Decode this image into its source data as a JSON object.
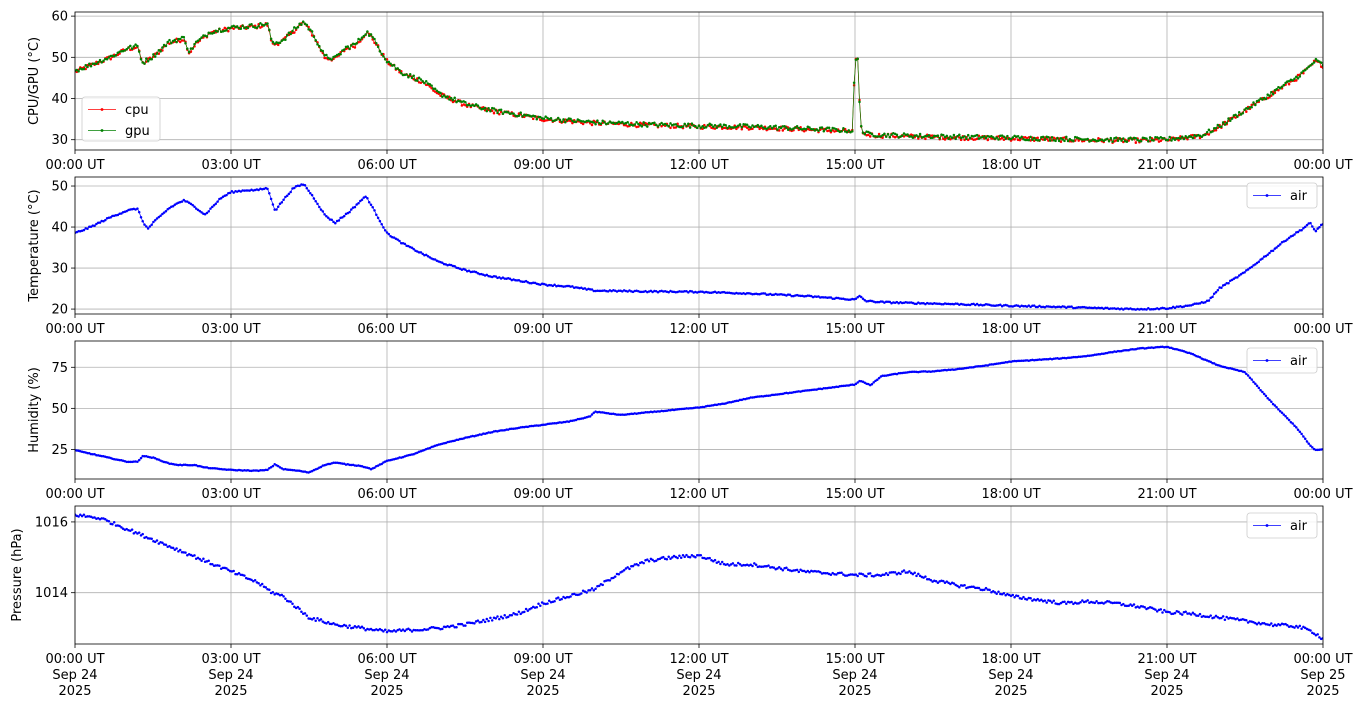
{
  "chart_data": [
    {
      "type": "line",
      "ylabel": "CPU/GPU (°C)",
      "ylim": [
        27.5,
        61
      ],
      "yticks": [
        30,
        40,
        50,
        60
      ],
      "grid": true,
      "legend": "lower-left",
      "x_tick_labels": [
        "00:00 UT",
        "03:00 UT",
        "06:00 UT",
        "09:00 UT",
        "12:00 UT",
        "15:00 UT",
        "18:00 UT",
        "21:00 UT",
        "00:00 UT"
      ],
      "series": [
        {
          "name": "cpu",
          "color": "#ff0000",
          "x": [
            0,
            0.1,
            0.3,
            0.7,
            1.0,
            1.2,
            1.3,
            1.5,
            1.8,
            2.1,
            2.2,
            2.3,
            2.6,
            3.0,
            3.5,
            3.7,
            3.8,
            4.0,
            4.3,
            4.4,
            4.6,
            4.8,
            5.0,
            5.2,
            5.4,
            5.6,
            5.7,
            6.0,
            6.3,
            6.7,
            7.0,
            7.5,
            8.0,
            8.5,
            9.0,
            9.5,
            10.0,
            10.5,
            11.0,
            12.0,
            13.0,
            14.0,
            14.95,
            15.0,
            15.05,
            15.1,
            15.15,
            15.25,
            15.5,
            16.0,
            17.0,
            18.0,
            19.0,
            20.0,
            20.5,
            21.0,
            21.4,
            21.7,
            22.0,
            22.5,
            23.0,
            23.5,
            23.7,
            23.85,
            24.0
          ],
          "y": [
            46.5,
            47.0,
            48.0,
            50.0,
            52.0,
            52.5,
            48.5,
            50.0,
            53.5,
            54.5,
            51.0,
            53.0,
            56.0,
            57.0,
            57.5,
            58.0,
            53.0,
            54.0,
            57.5,
            58.5,
            55.0,
            50.0,
            49.5,
            52.0,
            53.0,
            56.0,
            55.0,
            49.0,
            46.0,
            44.0,
            41.0,
            38.5,
            37.0,
            36.0,
            35.0,
            34.5,
            34.0,
            33.8,
            33.5,
            33.2,
            33.0,
            32.5,
            32.0,
            49.0,
            49.5,
            35.0,
            31.5,
            31.2,
            31.0,
            30.8,
            30.5,
            30.3,
            30.0,
            29.8,
            29.8,
            29.9,
            30.5,
            31.0,
            33.0,
            37.0,
            41.0,
            45.0,
            47.0,
            49.0,
            48.0
          ]
        },
        {
          "name": "gpu",
          "color": "#008000",
          "x": [
            0,
            0.1,
            0.3,
            0.7,
            1.0,
            1.2,
            1.3,
            1.5,
            1.8,
            2.1,
            2.2,
            2.3,
            2.6,
            3.0,
            3.5,
            3.7,
            3.8,
            4.0,
            4.3,
            4.4,
            4.6,
            4.8,
            5.0,
            5.2,
            5.4,
            5.6,
            5.7,
            6.0,
            6.3,
            6.7,
            7.0,
            7.5,
            8.0,
            8.5,
            9.0,
            9.5,
            10.0,
            10.5,
            11.0,
            12.0,
            13.0,
            14.0,
            14.95,
            15.0,
            15.05,
            15.1,
            15.15,
            15.25,
            15.5,
            16.0,
            17.0,
            18.0,
            19.0,
            20.0,
            20.5,
            21.0,
            21.4,
            21.7,
            22.0,
            22.5,
            23.0,
            23.5,
            23.7,
            23.85,
            24.0
          ],
          "y": [
            46.8,
            47.2,
            48.2,
            50.2,
            52.2,
            52.7,
            48.7,
            50.2,
            53.7,
            54.7,
            51.2,
            53.2,
            56.2,
            57.2,
            57.7,
            58.2,
            53.2,
            54.2,
            57.7,
            58.7,
            55.2,
            50.2,
            49.7,
            52.2,
            53.2,
            56.2,
            55.2,
            49.2,
            46.2,
            44.2,
            41.2,
            38.7,
            37.2,
            36.2,
            35.2,
            34.7,
            34.2,
            34.0,
            33.7,
            33.4,
            33.2,
            32.7,
            32.2,
            49.2,
            49.7,
            35.2,
            31.7,
            31.4,
            31.2,
            31.0,
            30.7,
            30.5,
            30.2,
            30.0,
            30.0,
            30.1,
            30.7,
            31.2,
            33.2,
            37.2,
            41.2,
            45.2,
            47.2,
            49.2,
            48.2
          ]
        }
      ]
    },
    {
      "type": "line",
      "ylabel": "Temperature (°C)",
      "ylim": [
        18.8,
        52.2
      ],
      "yticks": [
        20,
        30,
        40,
        50
      ],
      "grid": true,
      "legend": "upper-right",
      "x_tick_labels": [
        "00:00 UT",
        "03:00 UT",
        "06:00 UT",
        "09:00 UT",
        "12:00 UT",
        "15:00 UT",
        "18:00 UT",
        "21:00 UT",
        "00:00 UT"
      ],
      "series": [
        {
          "name": "air",
          "color": "#0000ff",
          "x": [
            0,
            0.3,
            0.7,
            1.0,
            1.2,
            1.3,
            1.4,
            1.5,
            1.8,
            2.0,
            2.1,
            2.3,
            2.5,
            2.8,
            3.0,
            3.3,
            3.5,
            3.7,
            3.85,
            4.0,
            4.2,
            4.4,
            4.6,
            4.8,
            5.0,
            5.1,
            5.3,
            5.5,
            5.6,
            5.8,
            6.0,
            6.3,
            6.6,
            7.0,
            7.5,
            8.0,
            8.5,
            9.0,
            9.5,
            10.0,
            11.0,
            12.0,
            13.0,
            14.0,
            15.0,
            15.1,
            15.2,
            15.5,
            16.0,
            17.0,
            18.0,
            19.0,
            20.0,
            20.5,
            21.0,
            21.5,
            21.8,
            22.0,
            22.5,
            23.0,
            23.3,
            23.6,
            23.75,
            23.85,
            24.0
          ],
          "y": [
            38.5,
            40.0,
            42.5,
            44.0,
            44.5,
            41.5,
            39.5,
            41.0,
            44.5,
            46.0,
            46.5,
            45.0,
            43.0,
            47.0,
            48.5,
            49.0,
            49.0,
            49.5,
            44.0,
            46.5,
            49.5,
            50.5,
            47.0,
            43.0,
            41.0,
            42.0,
            44.0,
            46.5,
            47.5,
            43.0,
            38.5,
            36.0,
            34.0,
            31.5,
            29.5,
            28.0,
            27.0,
            26.0,
            25.5,
            24.5,
            24.3,
            24.2,
            23.8,
            23.2,
            22.3,
            23.2,
            22.0,
            21.7,
            21.5,
            21.2,
            20.8,
            20.5,
            20.1,
            20.0,
            20.2,
            21.0,
            22.0,
            25.0,
            29.0,
            34.0,
            37.0,
            39.5,
            41.0,
            39.0,
            40.8
          ]
        }
      ]
    },
    {
      "type": "line",
      "ylabel": "Humidity (%)",
      "ylim": [
        7,
        91
      ],
      "yticks": [
        25,
        50,
        75
      ],
      "grid": true,
      "legend": "upper-right",
      "x_tick_labels": [
        "00:00 UT",
        "03:00 UT",
        "06:00 UT",
        "09:00 UT",
        "12:00 UT",
        "15:00 UT",
        "18:00 UT",
        "21:00 UT",
        "00:00 UT"
      ],
      "series": [
        {
          "name": "air",
          "color": "#0000ff",
          "x": [
            0,
            0.5,
            1.0,
            1.2,
            1.3,
            1.5,
            1.8,
            2.0,
            2.3,
            2.5,
            2.8,
            3.0,
            3.5,
            3.7,
            3.85,
            4.0,
            4.3,
            4.5,
            4.8,
            5.0,
            5.2,
            5.5,
            5.7,
            6.0,
            6.5,
            7.0,
            7.5,
            8.0,
            8.5,
            9.0,
            9.5,
            9.9,
            10.0,
            10.5,
            11.0,
            11.5,
            12.0,
            12.5,
            13.0,
            14.0,
            15.0,
            15.1,
            15.3,
            15.5,
            16.0,
            16.5,
            17.0,
            17.5,
            18.0,
            18.5,
            19.0,
            19.5,
            20.0,
            20.5,
            21.0,
            21.5,
            21.7,
            22.0,
            22.5,
            23.0,
            23.5,
            23.75,
            23.85,
            24.0
          ],
          "y": [
            24.5,
            21.0,
            17.5,
            17.5,
            21.0,
            20.0,
            16.5,
            15.5,
            15.5,
            14.0,
            13.0,
            12.5,
            12.0,
            12.5,
            16.0,
            13.0,
            12.0,
            11.0,
            15.5,
            17.0,
            16.0,
            15.0,
            13.0,
            18.0,
            22.0,
            28.0,
            32.0,
            35.5,
            38.0,
            40.0,
            42.0,
            45.0,
            48.0,
            46.0,
            47.5,
            49.0,
            50.5,
            53.0,
            56.5,
            60.5,
            64.5,
            67.0,
            64.0,
            69.5,
            72.0,
            72.5,
            74.0,
            76.0,
            78.5,
            79.5,
            80.5,
            82.0,
            84.5,
            86.5,
            87.5,
            83.0,
            80.0,
            76.0,
            72.0,
            54.0,
            38.0,
            27.5,
            24.5,
            25.0
          ]
        }
      ]
    },
    {
      "type": "scatter",
      "ylabel": "Pressure (hPa)",
      "ylim": [
        1012.55,
        1016.45
      ],
      "yticks": [
        1014,
        1016
      ],
      "grid": true,
      "legend": "upper-right",
      "x_tick_labels": [
        "00:00 UT",
        "03:00 UT",
        "06:00 UT",
        "09:00 UT",
        "12:00 UT",
        "15:00 UT",
        "18:00 UT",
        "21:00 UT",
        "00:00 UT"
      ],
      "x_tick_dates": [
        "Sep 24",
        "Sep 24",
        "Sep 24",
        "Sep 24",
        "Sep 24",
        "Sep 24",
        "Sep 24",
        "Sep 24",
        "Sep 25"
      ],
      "x_tick_years": [
        "2025",
        "2025",
        "2025",
        "2025",
        "2025",
        "2025",
        "2025",
        "2025",
        "2025"
      ],
      "series": [
        {
          "name": "air",
          "color": "#0000ff",
          "x": [
            0,
            0.5,
            1.0,
            1.5,
            2.0,
            2.5,
            3.0,
            3.5,
            3.8,
            4.0,
            4.5,
            5.0,
            5.5,
            6.0,
            6.5,
            7.0,
            7.5,
            8.0,
            8.5,
            9.0,
            9.5,
            10.0,
            10.5,
            11.0,
            11.5,
            12.0,
            12.5,
            13.0,
            13.5,
            14.0,
            14.5,
            15.0,
            15.5,
            16.0,
            16.5,
            17.0,
            17.5,
            18.0,
            18.5,
            19.0,
            19.5,
            20.0,
            20.5,
            21.0,
            21.5,
            22.0,
            22.5,
            23.0,
            23.5,
            23.8,
            24.0
          ],
          "y": [
            1016.2,
            1016.1,
            1015.8,
            1015.5,
            1015.2,
            1014.9,
            1014.6,
            1014.3,
            1014.0,
            1013.9,
            1013.3,
            1013.1,
            1013.0,
            1012.9,
            1012.95,
            1013.0,
            1013.1,
            1013.25,
            1013.4,
            1013.7,
            1013.9,
            1014.1,
            1014.6,
            1014.9,
            1015.0,
            1015.05,
            1014.8,
            1014.8,
            1014.7,
            1014.6,
            1014.55,
            1014.5,
            1014.5,
            1014.6,
            1014.35,
            1014.2,
            1014.1,
            1013.9,
            1013.8,
            1013.7,
            1013.75,
            1013.7,
            1013.6,
            1013.45,
            1013.4,
            1013.3,
            1013.2,
            1013.1,
            1013.05,
            1012.9,
            1012.7
          ]
        }
      ]
    }
  ]
}
